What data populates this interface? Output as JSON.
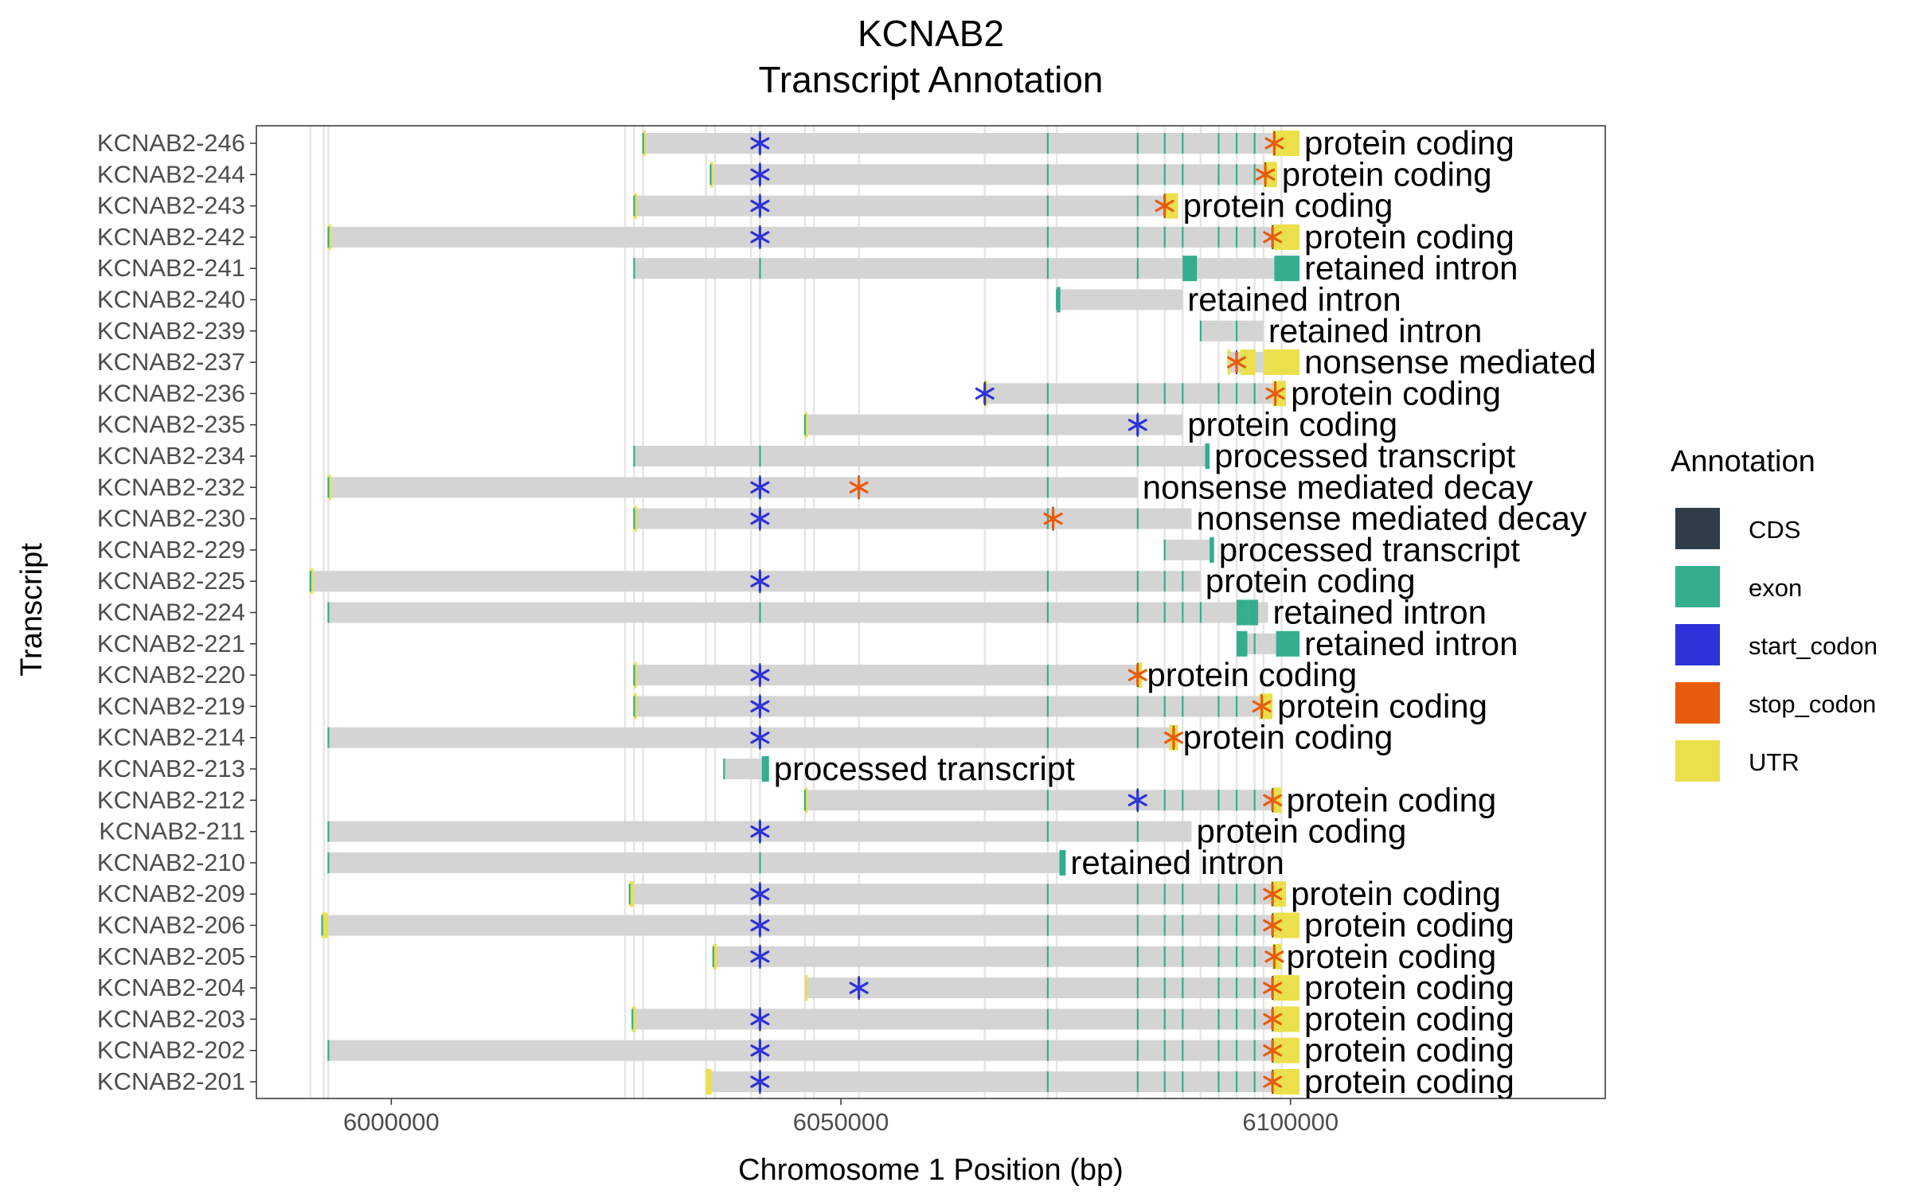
{
  "chart_data": {
    "type": "gantt",
    "title": "KCNAB2",
    "subtitle": "Transcript Annotation",
    "xlabel": "Chromosome 1 Position (bp)",
    "ylabel": "Transcript",
    "xlim": [
      5985000,
      6135000
    ],
    "xticks": [
      6000000,
      6050000,
      6100000
    ],
    "xtick_labels": [
      "6000000",
      "6050000",
      "6100000"
    ],
    "grid": false,
    "legend": {
      "title": "Annotation",
      "position": "right",
      "items": [
        {
          "name": "CDS",
          "color": "#2f3d48"
        },
        {
          "name": "exon",
          "color": "#34ae8e"
        },
        {
          "name": "start_codon",
          "color": "#2e32d8"
        },
        {
          "name": "stop_codon",
          "color": "#e85b0e"
        },
        {
          "name": "UTR",
          "color": "#ebe04b"
        }
      ]
    },
    "exon_guides": [
      5991000,
      5992500,
      5993000,
      6026000,
      6027000,
      6028000,
      6035000,
      6036000,
      6040000,
      6041000,
      6046000,
      6047000,
      6052000,
      6066000,
      6073000,
      6074000,
      6083000,
      6086000,
      6088000,
      6090000,
      6092000,
      6094000,
      6096000,
      6097000,
      6099000
    ],
    "transcripts": [
      {
        "name": "KCNAB2-246",
        "label": "protein coding",
        "start": 6028000,
        "end": 6101000,
        "exons": [
          6028000,
          6073000,
          6083000,
          6086000,
          6088000,
          6092000,
          6094000,
          6096000
        ],
        "utr": [
          [
            6028000,
            6028300
          ],
          [
            6098000,
            6101000
          ]
        ],
        "start_codon": 6041000,
        "stop_codon": 6098200
      },
      {
        "name": "KCNAB2-244",
        "label": "protein coding",
        "start": 6035500,
        "end": 6098500,
        "exons": [
          6035500,
          6073000,
          6083000,
          6086000,
          6088000,
          6092000,
          6094000,
          6096000
        ],
        "utr": [
          [
            6035500,
            6035800
          ],
          [
            6097000,
            6098500
          ]
        ],
        "start_codon": 6041000,
        "stop_codon": 6097200
      },
      {
        "name": "KCNAB2-243",
        "label": "protein coding",
        "start": 6027000,
        "end": 6087500,
        "exons": [
          6027000,
          6073000,
          6083000
        ],
        "utr": [
          [
            6027000,
            6027300
          ],
          [
            6086000,
            6087500
          ]
        ],
        "start_codon": 6041000,
        "stop_codon": 6086000
      },
      {
        "name": "KCNAB2-242",
        "label": "protein coding",
        "start": 5993000,
        "end": 6101000,
        "exons": [
          5993000,
          6073000,
          6083000,
          6086000,
          6088000,
          6092000,
          6094000,
          6096000
        ],
        "utr": [
          [
            5993000,
            5993300
          ],
          [
            6098000,
            6101000
          ]
        ],
        "start_codon": 6041000,
        "stop_codon": 6098000
      },
      {
        "name": "KCNAB2-241",
        "label": "retained intron",
        "start": 6027000,
        "end": 6101000,
        "exons": [
          6027000,
          6041000,
          6073000,
          6083000
        ],
        "exon_blocks": [
          [
            6088000,
            6089600
          ],
          [
            6098200,
            6101000
          ]
        ],
        "utr": [],
        "start_codon": null,
        "stop_codon": null
      },
      {
        "name": "KCNAB2-240",
        "label": "retained intron",
        "start": 6074000,
        "end": 6088000,
        "exons": [
          6074000
        ],
        "exon_blocks": [
          [
            6074000,
            6074400
          ]
        ],
        "utr": [],
        "start_codon": null,
        "stop_codon": null
      },
      {
        "name": "KCNAB2-239",
        "label": "retained intron",
        "start": 6090000,
        "end": 6097000,
        "exons": [
          6090000,
          6094000
        ],
        "utr": [],
        "start_codon": null,
        "stop_codon": null
      },
      {
        "name": "KCNAB2-237",
        "label": "nonsense mediated decay",
        "start": 6093000,
        "end": 6101000,
        "exons": [
          6094000
        ],
        "utr": [
          [
            6093000,
            6093300
          ],
          [
            6094400,
            6096100
          ],
          [
            6097000,
            6101000
          ]
        ],
        "start_codon": null,
        "stop_codon": 6094000
      },
      {
        "name": "KCNAB2-236",
        "label": "protein coding",
        "start": 6066000,
        "end": 6099500,
        "exons": [
          6066000,
          6073000,
          6083000,
          6086000,
          6088000,
          6092000,
          6094000,
          6096000
        ],
        "utr": [
          [
            6066000,
            6066300
          ],
          [
            6098000,
            6099500
          ]
        ],
        "start_codon": 6066000,
        "stop_codon": 6098300
      },
      {
        "name": "KCNAB2-235",
        "label": "protein coding",
        "start": 6046000,
        "end": 6088000,
        "exons": [
          6046000,
          6073000,
          6083000
        ],
        "utr": [
          [
            6046000,
            6046300
          ]
        ],
        "start_codon": 6083000,
        "stop_codon": null
      },
      {
        "name": "KCNAB2-234",
        "label": "processed transcript",
        "start": 6027000,
        "end": 6091000,
        "exons": [
          6027000,
          6041000,
          6073000,
          6083000
        ],
        "exon_blocks": [
          [
            6090500,
            6091000
          ]
        ],
        "utr": [],
        "start_codon": null,
        "stop_codon": null
      },
      {
        "name": "KCNAB2-232",
        "label": "nonsense mediated decay",
        "start": 5993000,
        "end": 6083000,
        "exons": [
          5993000,
          6041000,
          6052000,
          6073000
        ],
        "utr": [
          [
            5993000,
            5993300
          ]
        ],
        "start_codon": 6041000,
        "stop_codon": 6052000
      },
      {
        "name": "KCNAB2-230",
        "label": "nonsense mediated decay",
        "start": 6027000,
        "end": 6089000,
        "exons": [
          6027000,
          6041000,
          6073000,
          6083000
        ],
        "utr": [
          [
            6027000,
            6027300
          ]
        ],
        "start_codon": 6041000,
        "stop_codon": 6073600
      },
      {
        "name": "KCNAB2-229",
        "label": "processed transcript",
        "start": 6086000,
        "end": 6091500,
        "exons": [
          6086000
        ],
        "exon_blocks": [
          [
            6091000,
            6091500
          ]
        ],
        "utr": [],
        "start_codon": null,
        "stop_codon": null
      },
      {
        "name": "KCNAB2-225",
        "label": "protein coding",
        "start": 5991000,
        "end": 6090000,
        "exons": [
          5991000,
          6041000,
          6073000,
          6083000,
          6086000,
          6088000
        ],
        "utr": [
          [
            5991000,
            5991300
          ]
        ],
        "start_codon": 6041000,
        "stop_codon": null
      },
      {
        "name": "KCNAB2-224",
        "label": "retained intron",
        "start": 5993000,
        "end": 6097500,
        "exons": [
          5993000,
          6041000,
          6073000,
          6083000,
          6086000,
          6088000,
          6090000
        ],
        "exon_blocks": [
          [
            6094000,
            6095300
          ],
          [
            6095300,
            6096400
          ]
        ],
        "utr": [],
        "start_codon": null,
        "stop_codon": null
      },
      {
        "name": "KCNAB2-221",
        "label": "retained intron",
        "start": 6094000,
        "end": 6101000,
        "exons": [
          6096000
        ],
        "exon_blocks": [
          [
            6094000,
            6095200
          ],
          [
            6098400,
            6101000
          ]
        ],
        "utr": [],
        "start_codon": null,
        "stop_codon": null
      },
      {
        "name": "KCNAB2-220",
        "label": "protein coding",
        "start": 6027000,
        "end": 6083500,
        "exons": [
          6027000,
          6041000,
          6073000
        ],
        "utr": [
          [
            6027000,
            6027300
          ],
          [
            6083000,
            6083500
          ]
        ],
        "start_codon": 6041000,
        "stop_codon": 6083000
      },
      {
        "name": "KCNAB2-219",
        "label": "protein coding",
        "start": 6027000,
        "end": 6098000,
        "exons": [
          6027000,
          6041000,
          6073000,
          6083000,
          6086000,
          6088000,
          6092000,
          6094000
        ],
        "utr": [
          [
            6027000,
            6027300
          ],
          [
            6096500,
            6098000
          ]
        ],
        "start_codon": 6041000,
        "stop_codon": 6096800
      },
      {
        "name": "KCNAB2-214",
        "label": "protein coding",
        "start": 5993000,
        "end": 6087500,
        "exons": [
          5993000,
          6041000,
          6073000,
          6083000
        ],
        "utr": [
          [
            6086500,
            6087500
          ]
        ],
        "start_codon": 6041000,
        "stop_codon": 6087000
      },
      {
        "name": "KCNAB2-213",
        "label": "processed transcript",
        "start": 6037000,
        "end": 6042000,
        "exons": [
          6037000
        ],
        "exon_blocks": [
          [
            6041200,
            6042000
          ]
        ],
        "utr": [],
        "start_codon": null,
        "stop_codon": null
      },
      {
        "name": "KCNAB2-212",
        "label": "protein coding",
        "start": 6046000,
        "end": 6099000,
        "exons": [
          6046000,
          6073000,
          6083000,
          6086000,
          6088000,
          6092000,
          6094000,
          6096000
        ],
        "utr": [
          [
            6046000,
            6046300
          ],
          [
            6098000,
            6099000
          ]
        ],
        "start_codon": 6083000,
        "stop_codon": 6098000
      },
      {
        "name": "KCNAB2-211",
        "label": "protein coding",
        "start": 5993000,
        "end": 6089000,
        "exons": [
          5993000,
          6041000,
          6073000,
          6083000
        ],
        "utr": [],
        "start_codon": 6041000,
        "stop_codon": null
      },
      {
        "name": "KCNAB2-210",
        "label": "retained intron",
        "start": 5993000,
        "end": 6075000,
        "exons": [
          5993000,
          6041000
        ],
        "exon_blocks": [
          [
            6074300,
            6075000
          ]
        ],
        "utr": [],
        "start_codon": null,
        "stop_codon": null
      },
      {
        "name": "KCNAB2-209",
        "label": "protein coding",
        "start": 6026500,
        "end": 6099500,
        "exons": [
          6026500,
          6041000,
          6073000,
          6083000,
          6086000,
          6088000,
          6092000,
          6094000,
          6096000
        ],
        "utr": [
          [
            6026500,
            6027000
          ],
          [
            6097800,
            6099500
          ]
        ],
        "start_codon": 6041000,
        "stop_codon": 6098000
      },
      {
        "name": "KCNAB2-206",
        "label": "protein coding",
        "start": 5992300,
        "end": 6101000,
        "exons": [
          5992300,
          6041000,
          6073000,
          6083000,
          6086000,
          6088000,
          6092000,
          6094000,
          6096000
        ],
        "utr": [
          [
            5992300,
            5992900
          ],
          [
            6098000,
            6101000
          ]
        ],
        "start_codon": 6041000,
        "stop_codon": 6098000
      },
      {
        "name": "KCNAB2-205",
        "label": "protein coding",
        "start": 6035800,
        "end": 6099000,
        "exons": [
          6035800,
          6041000,
          6073000,
          6083000,
          6086000,
          6088000,
          6092000,
          6094000,
          6096000
        ],
        "utr": [
          [
            6035800,
            6036200
          ],
          [
            6098000,
            6099000
          ]
        ],
        "start_codon": 6041000,
        "stop_codon": 6098200
      },
      {
        "name": "KCNAB2-204",
        "label": "protein coding",
        "start": 6046000,
        "end": 6101000,
        "exons": [
          6052000,
          6073000,
          6083000,
          6086000,
          6088000,
          6092000,
          6094000,
          6096000
        ],
        "utr": [
          [
            6046000,
            6046300
          ],
          [
            6098000,
            6101000
          ]
        ],
        "start_codon": 6052000,
        "stop_codon": 6098000
      },
      {
        "name": "KCNAB2-203",
        "label": "protein coding",
        "start": 6026800,
        "end": 6101000,
        "exons": [
          6026800,
          6041000,
          6073000,
          6083000,
          6086000,
          6088000,
          6092000,
          6094000,
          6096000
        ],
        "utr": [
          [
            6026800,
            6027200
          ],
          [
            6098000,
            6101000
          ]
        ],
        "start_codon": 6041000,
        "stop_codon": 6098000
      },
      {
        "name": "KCNAB2-202",
        "label": "protein coding",
        "start": 5993000,
        "end": 6101000,
        "exons": [
          5993000,
          6041000,
          6073000,
          6083000,
          6086000,
          6088000,
          6092000,
          6094000,
          6096000
        ],
        "utr": [
          [
            6098000,
            6101000
          ]
        ],
        "start_codon": 6041000,
        "stop_codon": 6098000
      },
      {
        "name": "KCNAB2-201",
        "label": "protein coding",
        "start": 6035000,
        "end": 6101000,
        "exons": [
          6041000,
          6073000,
          6083000,
          6086000,
          6088000,
          6092000,
          6094000,
          6096000
        ],
        "utr": [
          [
            6035000,
            6035600
          ],
          [
            6098000,
            6101000
          ]
        ],
        "start_codon": 6041000,
        "stop_codon": 6098000
      }
    ]
  }
}
